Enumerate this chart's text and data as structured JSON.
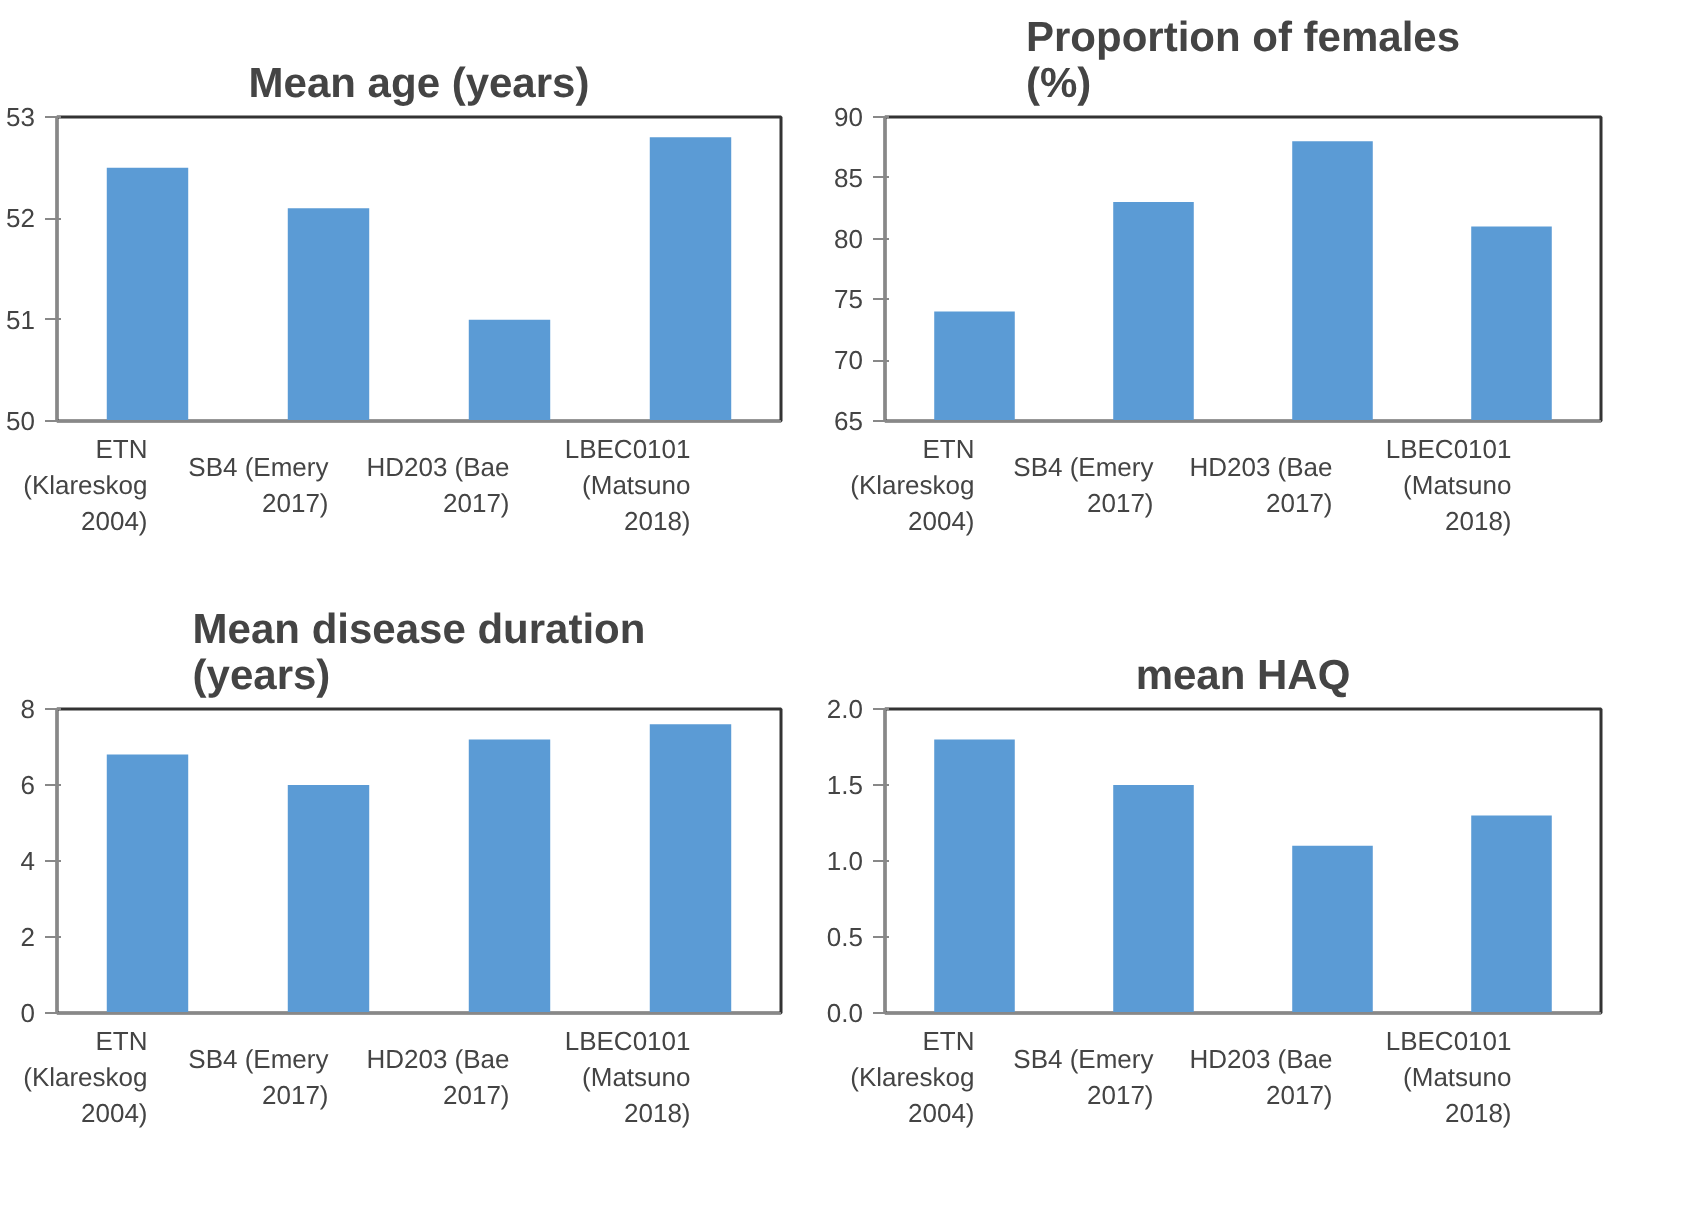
{
  "chart_data": [
    {
      "type": "bar",
      "title": "Mean age (years)",
      "categories": [
        "ETN\n(Klareskog\n2004)",
        "SB4 (Emery\n2017)",
        "HD203 (Bae\n2017)",
        "LBEC0101\n(Matsuno\n2018)"
      ],
      "values": [
        52.5,
        52.1,
        51.0,
        52.8
      ],
      "color": "#5b9bd5",
      "ylim": [
        50,
        53
      ],
      "yticks": [
        50,
        51,
        52,
        53
      ],
      "grid": false
    },
    {
      "type": "bar",
      "title": "Proportion of females\n(%)",
      "categories": [
        "ETN\n(Klareskog\n2004)",
        "SB4 (Emery\n2017)",
        "HD203 (Bae\n2017)",
        "LBEC0101\n(Matsuno\n2018)"
      ],
      "values": [
        74,
        83,
        88,
        81
      ],
      "color": "#5b9bd5",
      "ylim": [
        65,
        90
      ],
      "yticks": [
        65,
        70,
        75,
        80,
        85,
        90
      ],
      "grid": false
    },
    {
      "type": "bar",
      "title": "Mean disease duration\n(years)",
      "categories": [
        "ETN\n(Klareskog\n2004)",
        "SB4 (Emery\n2017)",
        "HD203 (Bae\n2017)",
        "LBEC0101\n(Matsuno\n2018)"
      ],
      "values": [
        6.8,
        6.0,
        7.2,
        7.6
      ],
      "color": "#5b9bd5",
      "ylim": [
        0,
        8
      ],
      "yticks": [
        0,
        2,
        4,
        6,
        8
      ],
      "grid": false
    },
    {
      "type": "bar",
      "title": "mean HAQ",
      "categories": [
        "ETN\n(Klareskog\n2004)",
        "SB4 (Emery\n2017)",
        "HD203 (Bae\n2017)",
        "LBEC0101\n(Matsuno\n2018)"
      ],
      "values": [
        1.8,
        1.5,
        1.1,
        1.3
      ],
      "color": "#5b9bd5",
      "ylim": [
        0,
        2
      ],
      "yticks": [
        {
          "value": 0,
          "label": "0.0"
        },
        {
          "value": 0.5,
          "label": "0.5"
        },
        {
          "value": 1,
          "label": "1.0"
        },
        {
          "value": 1.5,
          "label": "1.5"
        },
        {
          "value": 2,
          "label": "2.0"
        }
      ],
      "grid": false
    }
  ]
}
